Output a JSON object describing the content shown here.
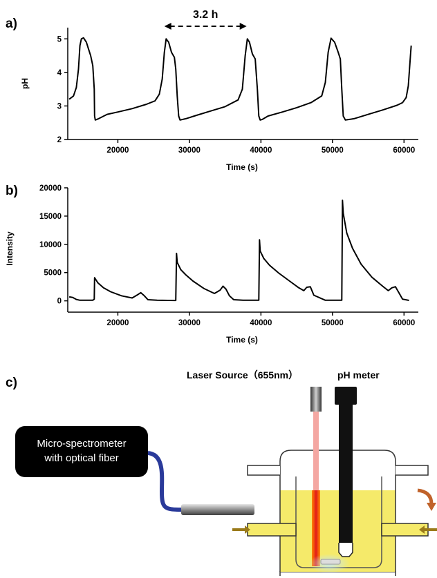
{
  "panels": {
    "a": "a)",
    "b": "b)",
    "c": "c)"
  },
  "chart_data": [
    {
      "type": "line",
      "xlabel": "Time (s)",
      "ylabel": "pH",
      "xlim": [
        13000,
        62000
      ],
      "ylim": [
        2,
        5.5
      ],
      "x_ticks": [
        20000,
        30000,
        40000,
        50000,
        60000
      ],
      "y_ticks": [
        2,
        3,
        4,
        5
      ],
      "grid": false,
      "annotation": {
        "text": "3.2 h",
        "x_from": 26500,
        "x_to": 38000
      },
      "series": [
        {
          "x": [
            13200,
            13800,
            14200,
            14500,
            14700,
            14900,
            15200,
            15600,
            15900,
            16200,
            16500,
            16700,
            16750,
            16850,
            17300,
            18500,
            20000,
            22000,
            24000,
            25200,
            25800,
            26200,
            26500,
            26750,
            27100,
            27500,
            27900,
            28100,
            28300,
            28500,
            28700,
            29500,
            31000,
            33000,
            35000,
            36800,
            37400,
            37800,
            38100,
            38400,
            38800,
            39200,
            39500,
            39700,
            39900,
            40200,
            41000,
            43000,
            45000,
            47000,
            48500,
            49000,
            49400,
            49800,
            50300,
            50800,
            51100,
            51300,
            51500,
            51800,
            53000,
            55000,
            57000,
            59000,
            59800,
            60300,
            60600,
            60900,
            61000
          ],
          "y": [
            3.2,
            3.3,
            3.55,
            4.1,
            4.8,
            5.0,
            5.03,
            4.9,
            4.7,
            4.5,
            4.2,
            3.5,
            2.7,
            2.58,
            2.62,
            2.75,
            2.82,
            2.92,
            3.05,
            3.15,
            3.35,
            3.8,
            4.6,
            5.0,
            4.9,
            4.6,
            4.45,
            4.1,
            3.3,
            2.7,
            2.58,
            2.62,
            2.72,
            2.85,
            2.98,
            3.18,
            3.5,
            4.5,
            5.0,
            4.9,
            4.55,
            4.4,
            3.5,
            2.7,
            2.58,
            2.6,
            2.7,
            2.82,
            2.95,
            3.1,
            3.3,
            3.7,
            4.6,
            5.02,
            4.9,
            4.6,
            4.4,
            3.5,
            2.7,
            2.58,
            2.62,
            2.75,
            2.88,
            3.02,
            3.1,
            3.25,
            3.6,
            4.5,
            4.8
          ]
        }
      ]
    },
    {
      "type": "line",
      "xlabel": "Time (s)",
      "ylabel": "Intensity",
      "xlim": [
        13000,
        62000
      ],
      "ylim": [
        -2000,
        20000
      ],
      "x_ticks": [
        20000,
        30000,
        40000,
        50000,
        60000
      ],
      "y_ticks": [
        0,
        5000,
        10000,
        15000,
        20000
      ],
      "grid": false,
      "series": [
        {
          "x": [
            13200,
            13700,
            14200,
            14700,
            15500,
            16500,
            16700,
            16750,
            17200,
            18000,
            19000,
            20500,
            22000,
            22800,
            23200,
            23700,
            24200,
            25500,
            27000,
            28100,
            28200,
            28300,
            28800,
            29500,
            30500,
            32000,
            33500,
            34300,
            34700,
            35100,
            35600,
            36200,
            37500,
            39000,
            39700,
            39800,
            39900,
            40400,
            41200,
            42500,
            44000,
            45300,
            46000,
            46400,
            46900,
            47400,
            49000,
            50500,
            51300,
            51400,
            51500,
            52000,
            52800,
            54000,
            55500,
            57000,
            57800,
            58300,
            58800,
            59300,
            59800,
            60700
          ],
          "y": [
            700,
            600,
            250,
            100,
            120,
            100,
            300,
            4100,
            3200,
            2300,
            1600,
            900,
            500,
            1100,
            1450,
            900,
            200,
            100,
            80,
            60,
            8400,
            6800,
            5500,
            4600,
            3500,
            2200,
            1300,
            1900,
            2600,
            2100,
            900,
            200,
            100,
            100,
            100,
            10800,
            8800,
            7500,
            6300,
            4900,
            3500,
            2300,
            1800,
            2400,
            2500,
            1000,
            100,
            100,
            100,
            17800,
            15500,
            12000,
            9300,
            6500,
            4200,
            2600,
            1800,
            2300,
            2500,
            1400,
            300,
            80
          ]
        }
      ]
    }
  ],
  "diagram": {
    "box_line1": "Micro-spectrometer",
    "box_line2": "with optical fiber",
    "laser_label": "Laser Source（655nm）",
    "ph_label": "pH meter"
  }
}
